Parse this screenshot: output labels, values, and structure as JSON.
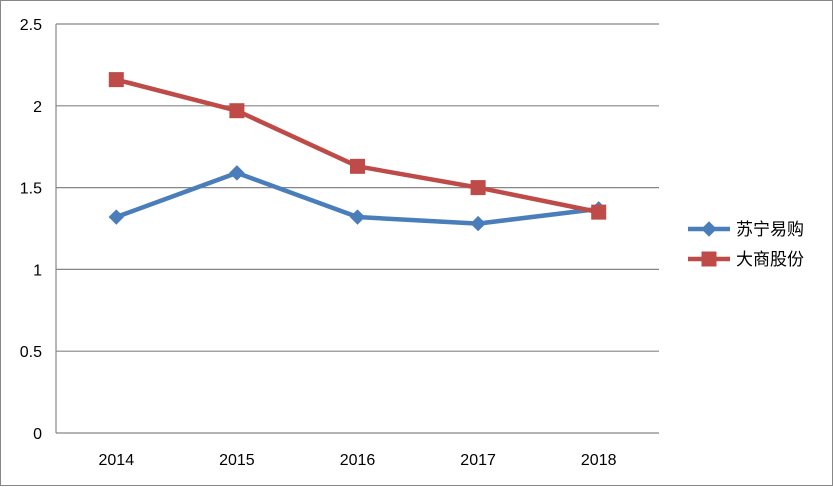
{
  "chart_data": {
    "type": "line",
    "title": "",
    "xlabel": "",
    "ylabel": "",
    "categories": [
      "2014",
      "2015",
      "2016",
      "2017",
      "2018"
    ],
    "ylim": [
      0,
      2.5
    ],
    "yticks": [
      "0",
      "0.5",
      "1",
      "1.5",
      "2",
      "2.5"
    ],
    "grid": true,
    "legend_position": "right",
    "series": [
      {
        "name": "苏宁易购",
        "values": [
          1.32,
          1.59,
          1.32,
          1.28,
          1.37
        ],
        "color": "#4A7EBB",
        "marker": "diamond"
      },
      {
        "name": "大商股份",
        "values": [
          2.16,
          1.97,
          1.63,
          1.5,
          1.35
        ],
        "color": "#BE4B48",
        "marker": "square"
      }
    ]
  }
}
